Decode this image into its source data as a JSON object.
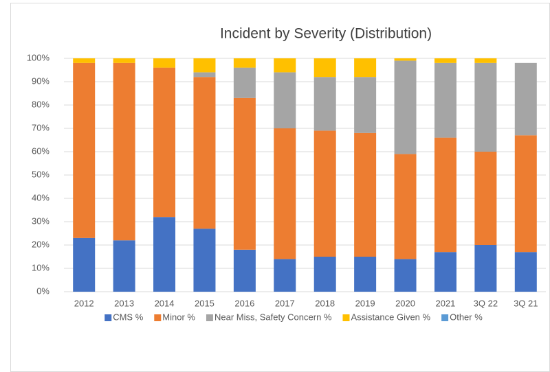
{
  "chart_data": {
    "type": "stacked-bar",
    "title": "Incident by Severity (Distribution)",
    "categories": [
      "2012",
      "2013",
      "2014",
      "2015",
      "2016",
      "2017",
      "2018",
      "2019",
      "2020",
      "2021",
      "3Q 22",
      "3Q 21"
    ],
    "series": [
      {
        "name": "CMS %",
        "color": "#4472c4",
        "values": [
          23,
          22,
          32,
          27,
          18,
          14,
          15,
          15,
          14,
          17,
          20,
          17
        ]
      },
      {
        "name": "Minor %",
        "color": "#ed7d31",
        "values": [
          75,
          76,
          64,
          65,
          65,
          56,
          54,
          53,
          45,
          49,
          40,
          50
        ]
      },
      {
        "name": "Near Miss, Safety Concern %",
        "color": "#a5a5a5",
        "values": [
          0,
          0,
          0,
          2,
          13,
          24,
          23,
          24,
          40,
          32,
          38,
          31
        ]
      },
      {
        "name": "Assistance Given %",
        "color": "#ffc000",
        "values": [
          2,
          2,
          4,
          6,
          4,
          6,
          8,
          8,
          1,
          2,
          2,
          0
        ]
      },
      {
        "name": "Other %",
        "color": "#5b9bd5",
        "values": [
          0,
          0,
          0,
          0,
          0,
          0,
          0,
          0,
          0,
          0,
          0,
          0
        ]
      }
    ],
    "ylim": [
      0,
      100
    ],
    "yticks": [
      {
        "value": 0,
        "label": "0%"
      },
      {
        "value": 10,
        "label": "10%"
      },
      {
        "value": 20,
        "label": "20%"
      },
      {
        "value": 30,
        "label": "30%"
      },
      {
        "value": 40,
        "label": "40%"
      },
      {
        "value": 50,
        "label": "50%"
      },
      {
        "value": 60,
        "label": "60%"
      },
      {
        "value": 70,
        "label": "70%"
      },
      {
        "value": 80,
        "label": "80%"
      },
      {
        "value": 90,
        "label": "90%"
      },
      {
        "value": 100,
        "label": "100%"
      }
    ],
    "grid": true,
    "legend": "bottom"
  }
}
